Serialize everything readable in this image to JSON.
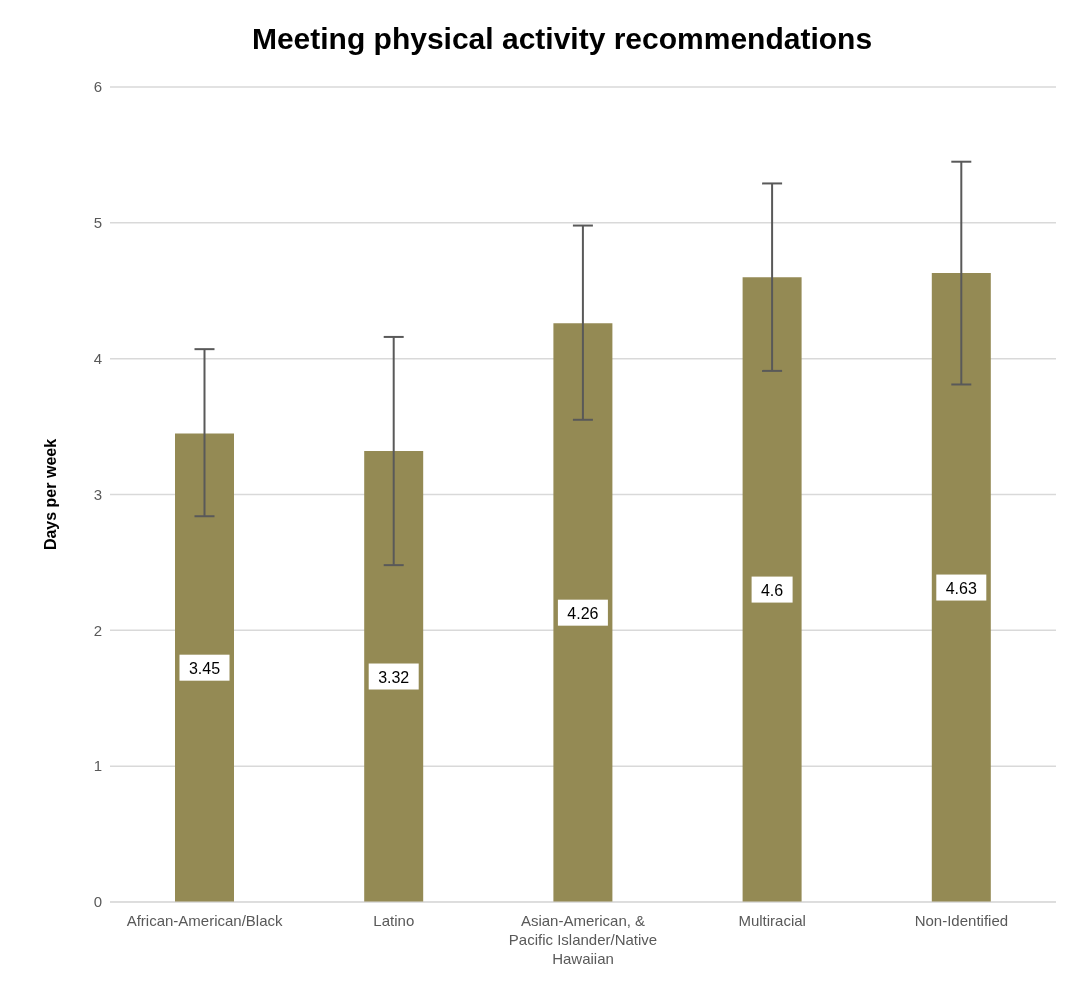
{
  "chart_data": {
    "type": "bar",
    "title": "Meeting physical activity recommendations",
    "ylabel": "Days per week",
    "categories": [
      "African-American/Black",
      "Latino",
      "Asian-American, & Pacific Islander/Native Hawaiian",
      "Multiracial",
      "Non-Identified"
    ],
    "values": [
      3.45,
      3.32,
      4.26,
      4.6,
      4.63
    ],
    "errors": [
      [
        2.84,
        4.07
      ],
      [
        2.48,
        4.16
      ],
      [
        3.55,
        4.98
      ],
      [
        3.91,
        5.29
      ],
      [
        3.81,
        5.45
      ]
    ],
    "color": "#948a54",
    "ylim": [
      0,
      6
    ],
    "yticks": [
      0,
      1,
      2,
      3,
      4,
      5,
      6
    ],
    "grid": "y",
    "data_labels": true
  }
}
